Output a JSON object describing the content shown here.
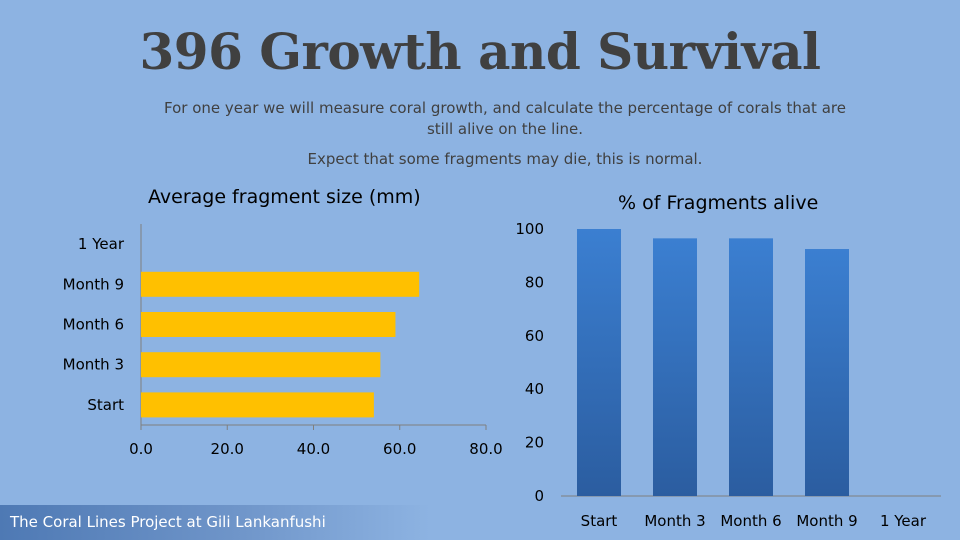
{
  "title": "396 Growth and Survival",
  "subtitle_line1": "For one year we will measure coral growth, and calculate the percentage of corals that are still alive on the line.",
  "subtitle_line2": "Expect that some fragments may die, this is normal.",
  "footer": "The Coral Lines Project at Gili Lankanfushi",
  "chart_data": [
    {
      "type": "bar",
      "orientation": "horizontal",
      "title": "Average fragment size (mm)",
      "categories": [
        "Start",
        "Month 3",
        "Month 6",
        "Month 9",
        "1 Year"
      ],
      "values": [
        54,
        55.5,
        59,
        64.5,
        null
      ],
      "xlim": [
        0,
        80
      ],
      "ticks": [
        "0.0",
        "20.0",
        "40.0",
        "60.0",
        "80.0"
      ],
      "tick_values": [
        0,
        20,
        40,
        60,
        80
      ],
      "color": "#ffc000"
    },
    {
      "type": "bar",
      "orientation": "vertical",
      "title": "% of Fragments alive",
      "categories": [
        "Start",
        "Month 3",
        "Month 6",
        "Month 9",
        "1 Year"
      ],
      "values": [
        100,
        96.5,
        96.5,
        92.5,
        null
      ],
      "ylim": [
        0,
        100
      ],
      "ticks": [
        "0",
        "20",
        "40",
        "60",
        "80",
        "100"
      ],
      "tick_values": [
        0,
        20,
        40,
        60,
        80,
        100
      ],
      "color_top": "#3b7fd1",
      "color_bottom": "#2b5da0"
    }
  ]
}
